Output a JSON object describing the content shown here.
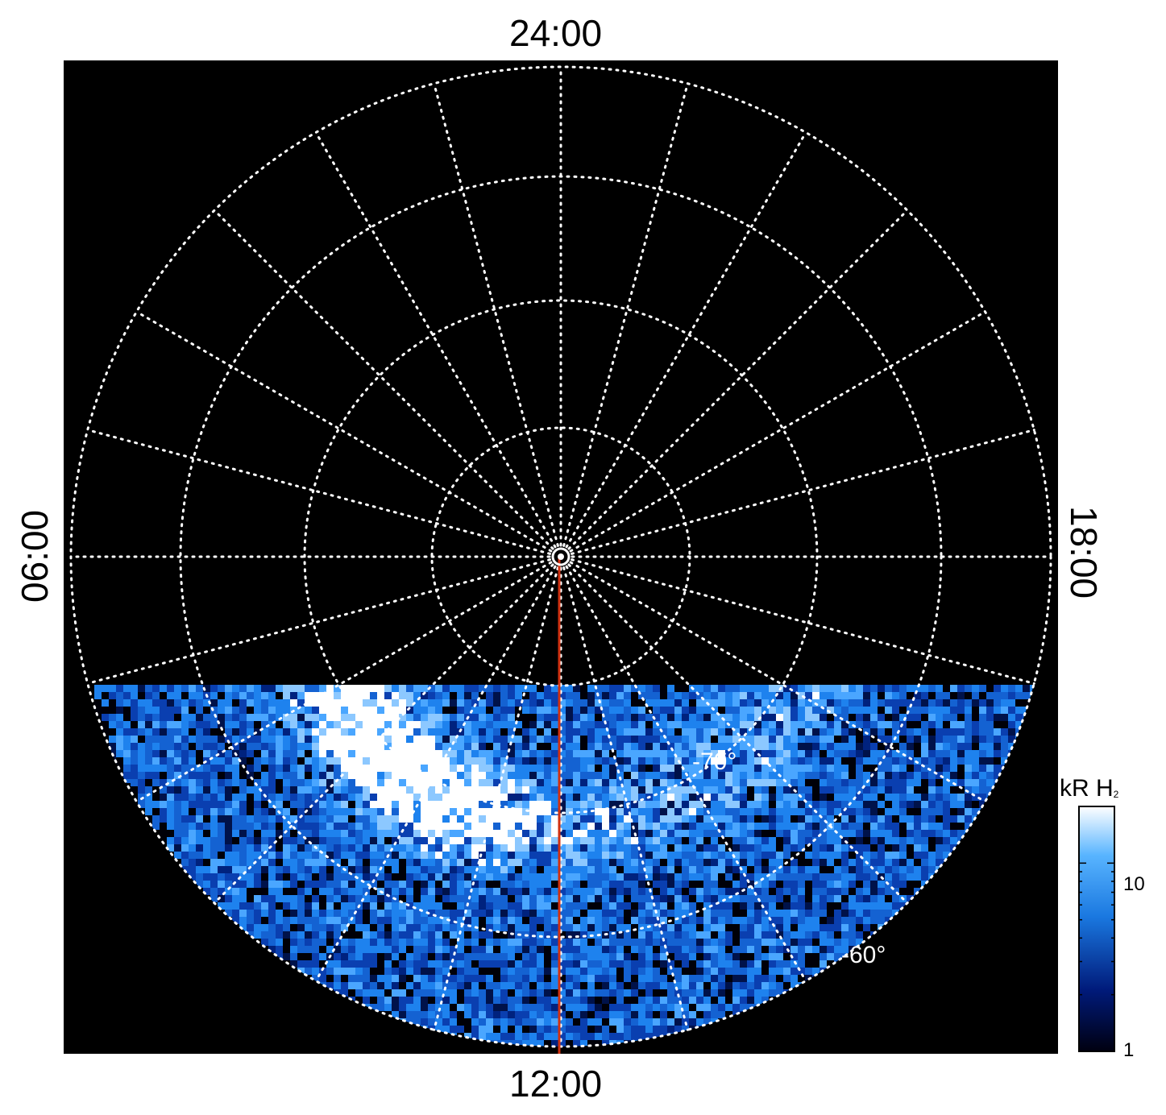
{
  "local_time_labels": {
    "top": "24:00",
    "bottom": "12:00",
    "left": "06:00",
    "right": "18:00"
  },
  "latitude_labels": {
    "inner": "-70°",
    "outer": "-60°"
  },
  "colorbar": {
    "title_main": "kR H",
    "title_sub": "2",
    "ticks": [
      "10",
      "1"
    ],
    "scale": "log",
    "range": [
      1,
      20
    ],
    "colors": [
      "#000010",
      "#001a7a",
      "#1a78e0",
      "#58b4ff",
      "#ffffff"
    ]
  },
  "map": {
    "projection": "polar",
    "background": "#000000",
    "grid_color": "#ffffff",
    "grid_style": "dotted",
    "meridian_line_color": "#d03010",
    "meridian_line_local_time": "12:00"
  }
}
